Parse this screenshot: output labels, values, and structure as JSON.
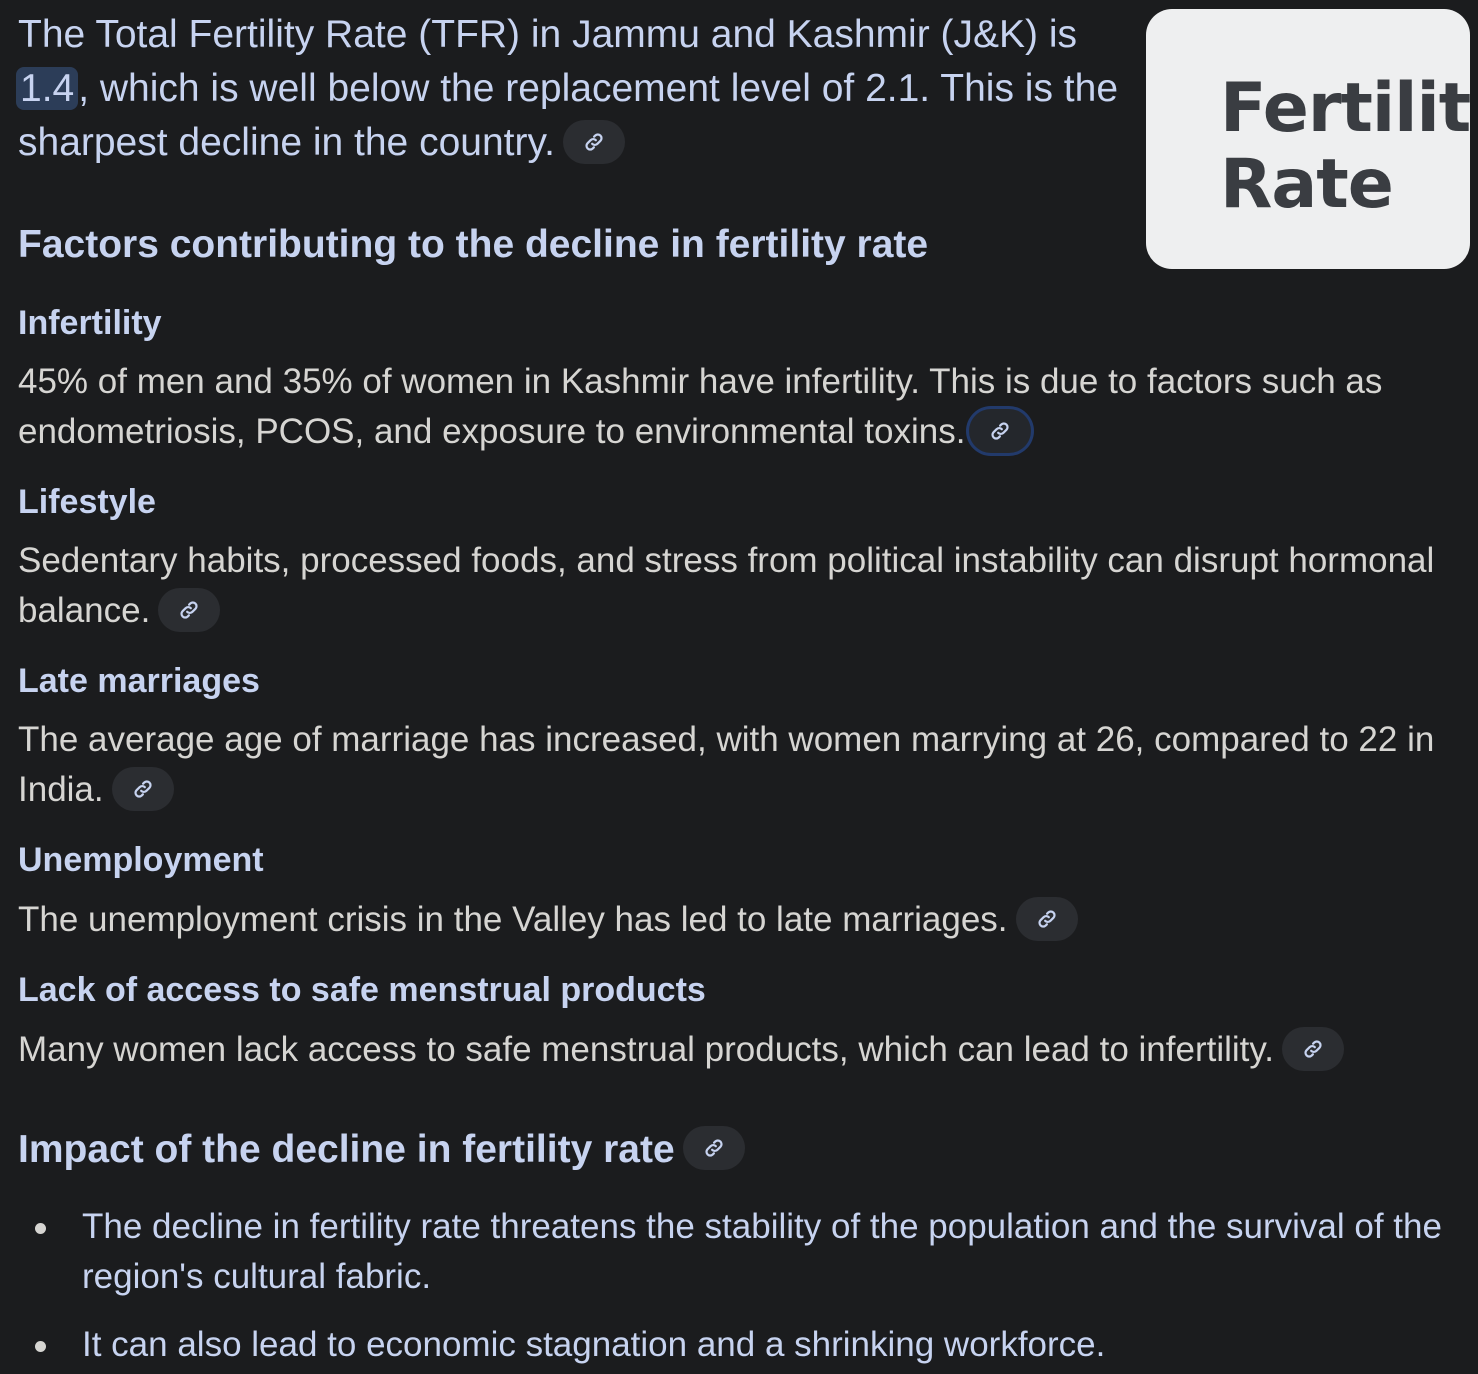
{
  "intro": {
    "text_before": "The Total Fertility Rate (TFR) in Jammu and Kashmir (J&K) is ",
    "highlight": "1.4",
    "text_after": ", which is well below the replacement level of 2.1. This is the sharpest decline in the country."
  },
  "thumbnail": {
    "text": "Fertility\nRate"
  },
  "factors_heading": "Factors contributing to the decline in fertility rate",
  "factors": [
    {
      "title": "Infertility",
      "body": "45% of men and 35% of women in Kashmir have infertility. This is due to factors such as endometriosis, PCOS, and exposure to environmental toxins."
    },
    {
      "title": "Lifestyle",
      "body": "Sedentary habits, processed foods, and stress from political instability can disrupt hormonal balance."
    },
    {
      "title": "Late marriages",
      "body": "The average age of marriage has increased, with women marrying at 26, compared to 22 in India."
    },
    {
      "title": "Unemployment",
      "body": "The unemployment crisis in the Valley has led to late marriages."
    },
    {
      "title": "Lack of access to safe menstrual products",
      "body": "Many women lack access to safe menstrual products, which can lead to infertility."
    }
  ],
  "impact_heading": "Impact of the decline in fertility rate",
  "impact_bullets": [
    "The decline in fertility rate threatens the stability of the population and the survival of the region's cultural fabric.",
    "It can also lead to economic stagnation and a shrinking workforce."
  ],
  "icons": {
    "source_link": "link-icon"
  }
}
